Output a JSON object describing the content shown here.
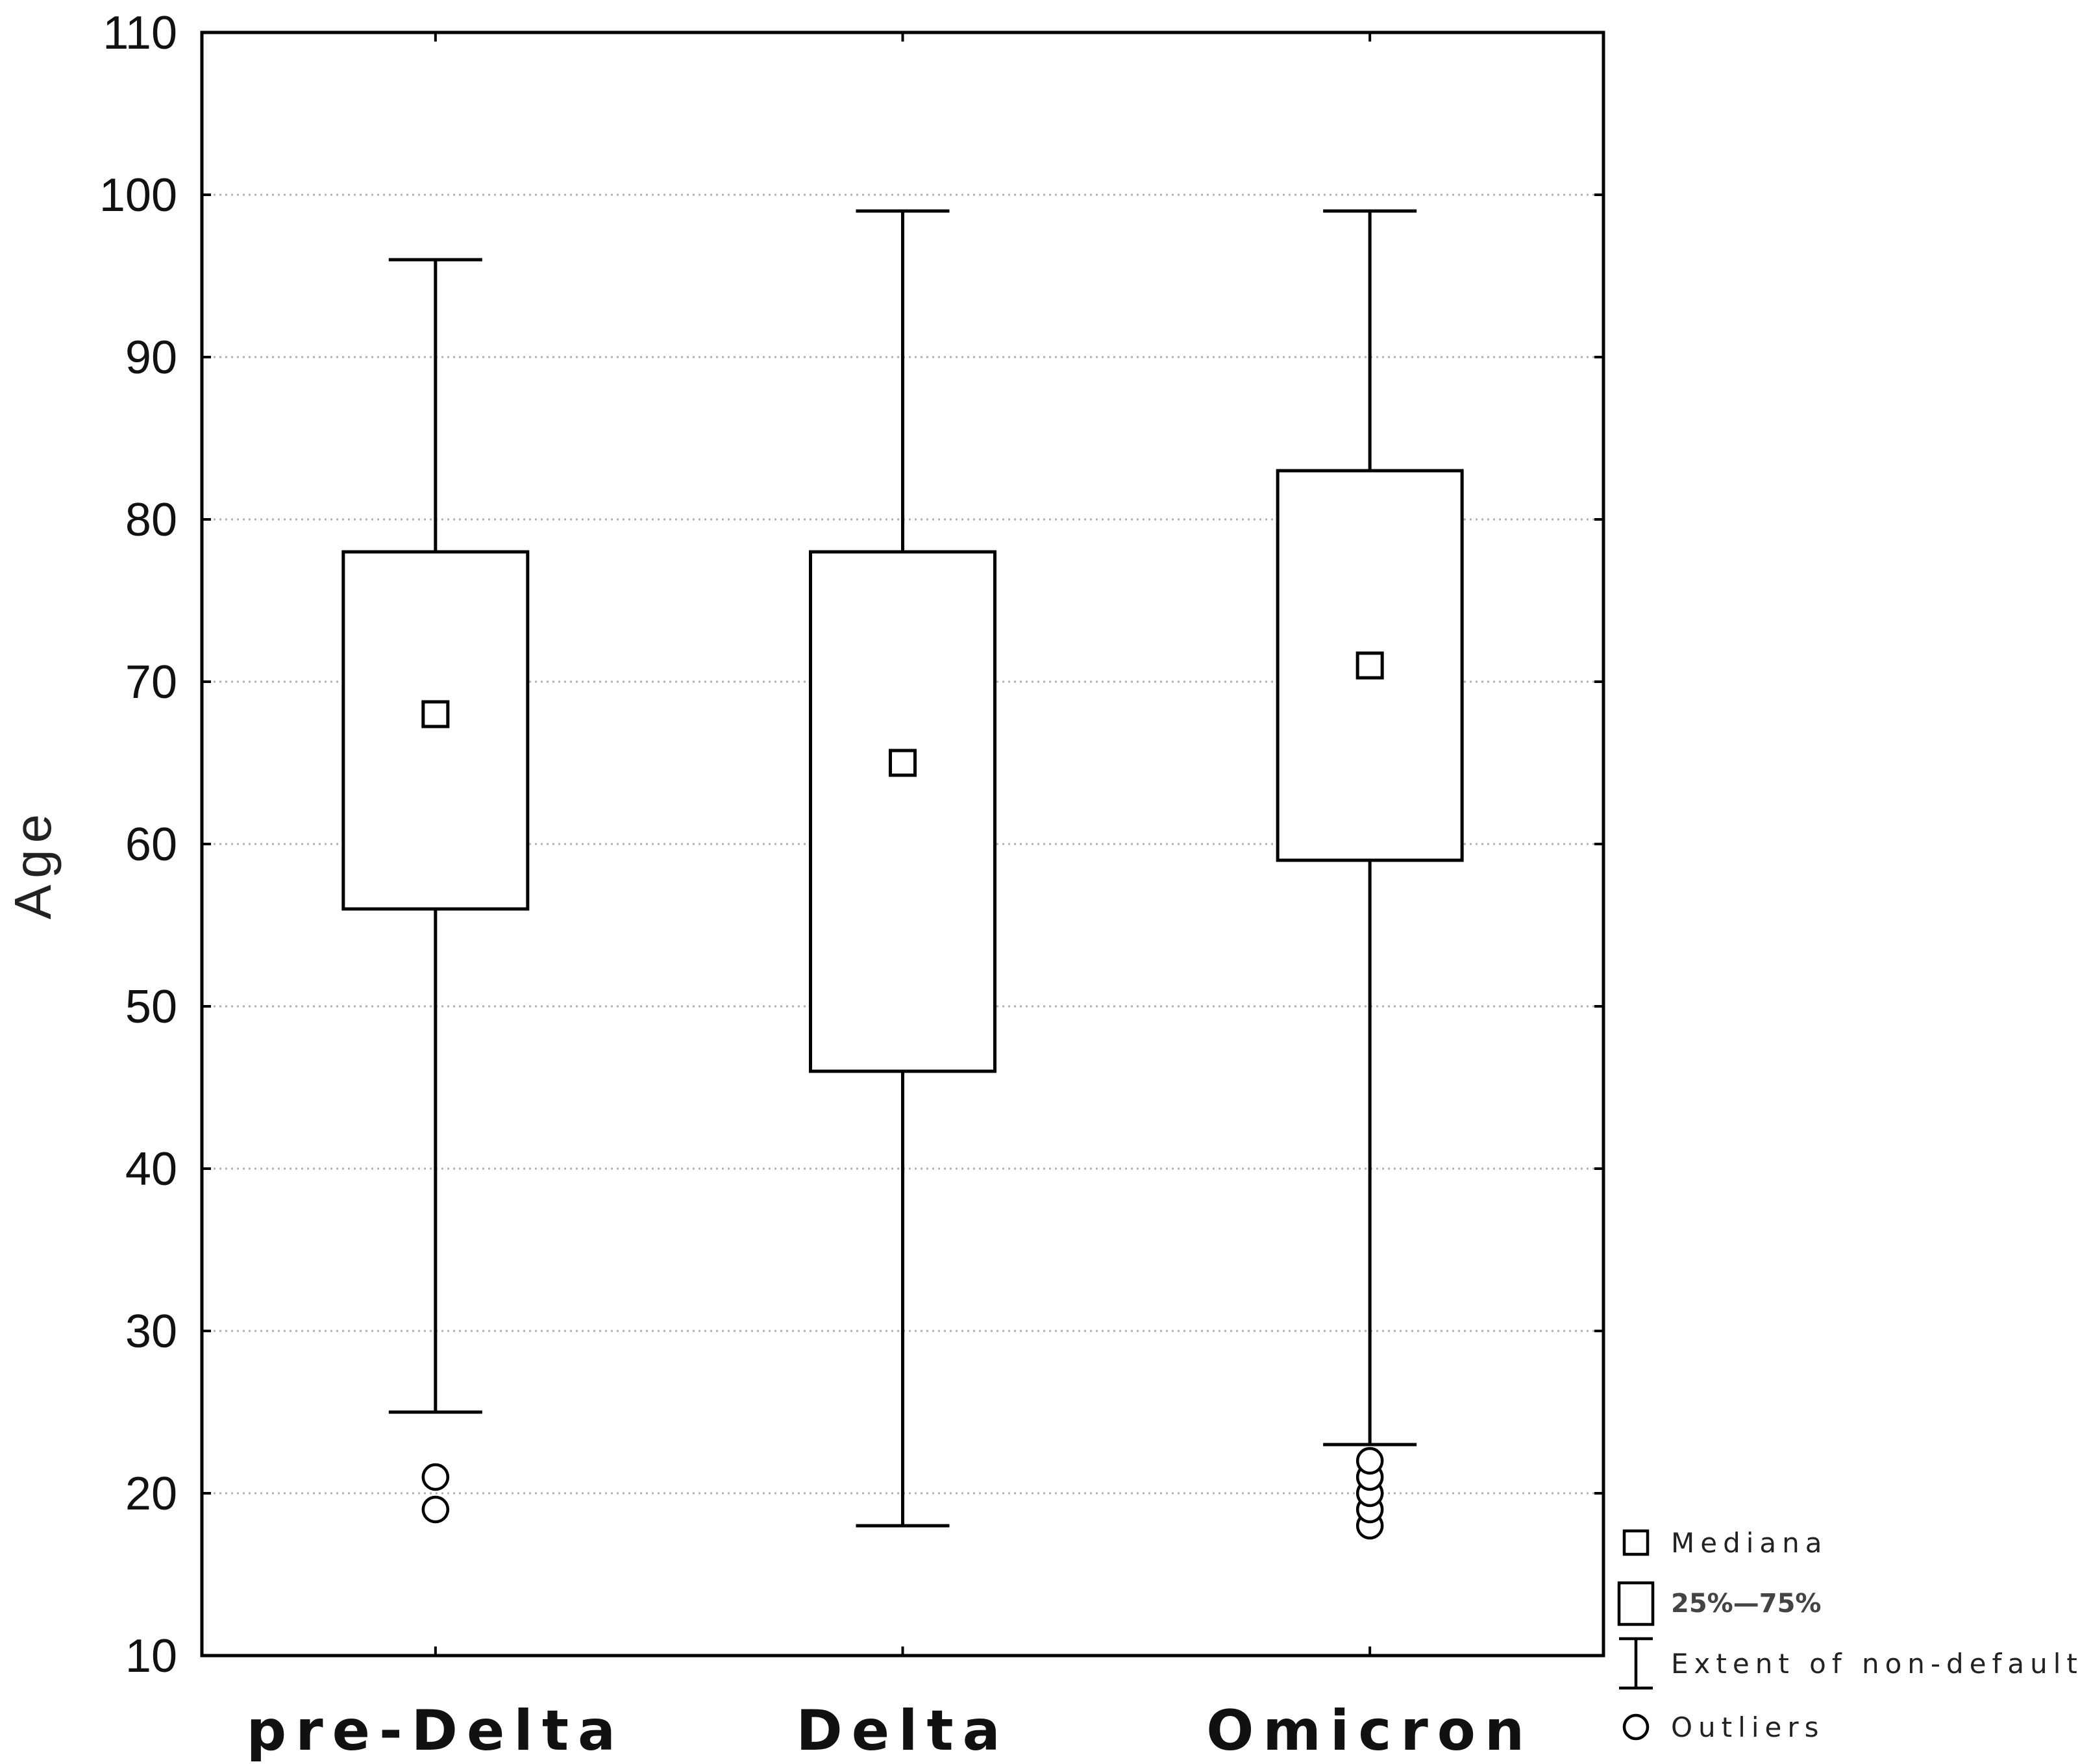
{
  "chart_data": {
    "type": "box",
    "ylabel": "Age",
    "xlabel": "",
    "ylim": [
      10,
      110
    ],
    "yticks": [
      10,
      20,
      30,
      40,
      50,
      60,
      70,
      80,
      90,
      100,
      110
    ],
    "grid": "horizontal dotted",
    "categories": [
      "pre-Delta",
      "Delta",
      "Omicron"
    ],
    "boxes": [
      {
        "category": "pre-Delta",
        "median": 68,
        "q1": 56,
        "q3": 78,
        "whisker_low": 25,
        "whisker_high": 96,
        "outliers": [
          19,
          21
        ]
      },
      {
        "category": "Delta",
        "median": 65,
        "q1": 46,
        "q3": 78,
        "whisker_low": 18,
        "whisker_high": 99,
        "outliers": []
      },
      {
        "category": "Omicron",
        "median": 71,
        "q1": 59,
        "q3": 83,
        "whisker_low": 23,
        "whisker_high": 99,
        "outliers": [
          18,
          19,
          20,
          21,
          22
        ]
      }
    ],
    "legend": {
      "position": "bottom-right",
      "entries": [
        {
          "symbol": "small-square",
          "label": "Mediana"
        },
        {
          "symbol": "box",
          "label": "25%—75%"
        },
        {
          "symbol": "whisker",
          "label": "Extent of non-default"
        },
        {
          "symbol": "circle",
          "label": "Outliers"
        }
      ]
    }
  }
}
